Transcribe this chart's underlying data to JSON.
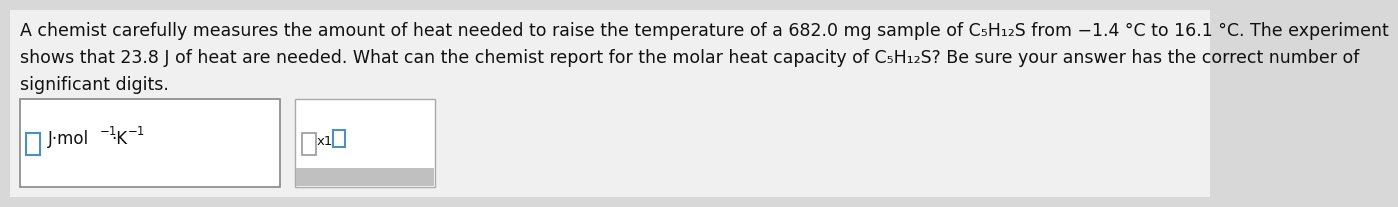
{
  "background_color": "#d8d8d8",
  "main_bg": "#f0f0f0",
  "text_color": "#111111",
  "line1": "A chemist carefully measures the amount of heat needed to raise the temperature of a 682.0 mg sample of C₅H₁₂S from −1.4 °C to 16.1 °C. The experiment",
  "line2": "shows that 23.8 J of heat are needed. What can the chemist report for the molar heat capacity of C₅H₁₂S? Be sure your answer has the correct number of",
  "line3": "significant digits.",
  "input_box_color": "#ffffff",
  "box_border_color": "#888888",
  "box2_border_color": "#aaaaaa",
  "blue_color": "#4d90c0",
  "gray_bar_color": "#c0c0c0",
  "font_size_body": 12.5,
  "font_size_units": 12,
  "font_size_sup": 8.5,
  "font_size_x10": 9.5
}
